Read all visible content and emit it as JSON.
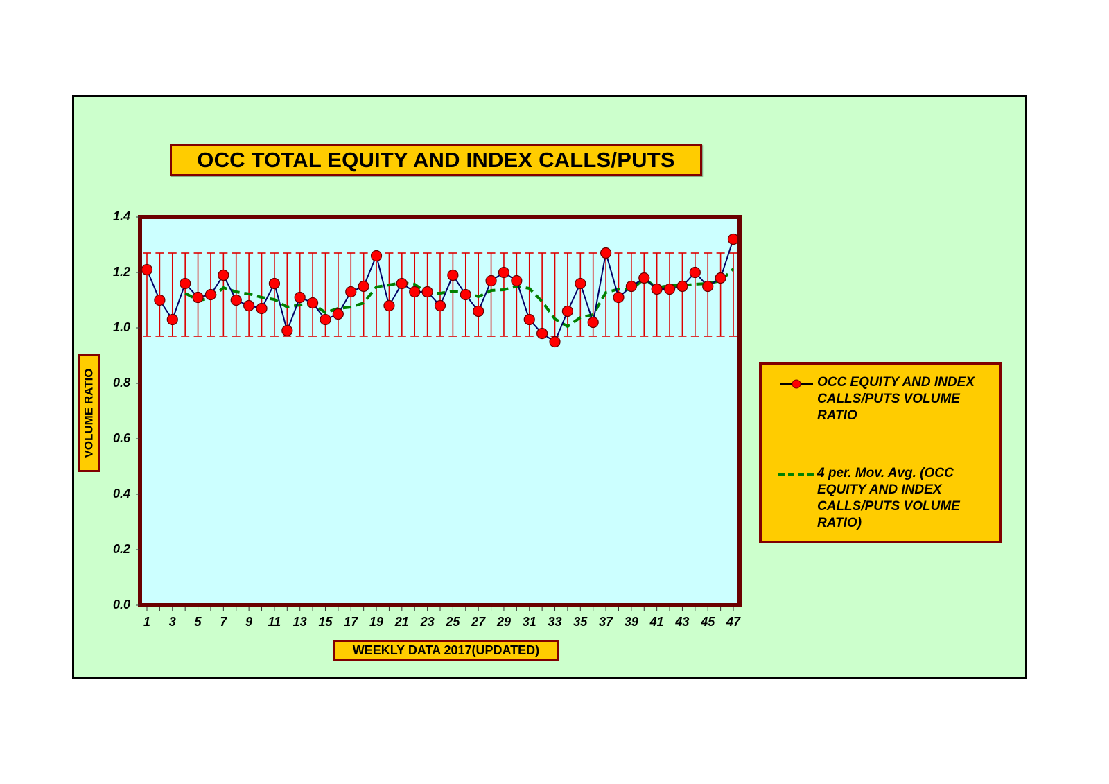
{
  "title": "OCC TOTAL EQUITY AND INDEX CALLS/PUTS",
  "y_axis_label": "VOLUME RATIO",
  "x_axis_label": "WEEKLY DATA 2017(UPDATED)",
  "legend": {
    "series1": "OCC EQUITY AND INDEX CALLS/PUTS VOLUME RATIO",
    "series2": "4 per. Mov. Avg. (OCC EQUITY AND INDEX CALLS/PUTS VOLUME RATIO)"
  },
  "colors": {
    "outer_bg": "#ccffcc",
    "plot_bg": "#ccffff",
    "frame": "#800000",
    "label_box": "#ffcc00",
    "marker": "#ff0000",
    "line": "#000066",
    "moving_avg": "#008000",
    "error_bar": "#dd0000"
  },
  "chart_data": {
    "type": "line",
    "title": "OCC TOTAL EQUITY AND INDEX CALLS/PUTS",
    "xlabel": "WEEKLY DATA 2017(UPDATED)",
    "ylabel": "VOLUME RATIO",
    "ylim": [
      0.0,
      1.4
    ],
    "y_ticks": [
      "0.0",
      "0.2",
      "0.4",
      "0.6",
      "0.8",
      "1.0",
      "1.2",
      "1.4"
    ],
    "x_tick_labels": [
      "1",
      "3",
      "5",
      "7",
      "9",
      "11",
      "13",
      "15",
      "17",
      "19",
      "21",
      "23",
      "25",
      "27",
      "29",
      "31",
      "33",
      "35",
      "37",
      "39",
      "41",
      "43",
      "45",
      "47"
    ],
    "x": [
      1,
      2,
      3,
      4,
      5,
      6,
      7,
      8,
      9,
      10,
      11,
      12,
      13,
      14,
      15,
      16,
      17,
      18,
      19,
      20,
      21,
      22,
      23,
      24,
      25,
      26,
      27,
      28,
      29,
      30,
      31,
      32,
      33,
      34,
      35,
      36,
      37,
      38,
      39,
      40,
      41,
      42,
      43,
      44,
      45,
      46,
      47
    ],
    "grid": false,
    "legend_position": "right",
    "series": [
      {
        "name": "OCC EQUITY AND INDEX CALLS/PUTS VOLUME RATIO",
        "style": "line+marker",
        "values": [
          1.21,
          1.1,
          1.03,
          1.16,
          1.11,
          1.12,
          1.19,
          1.1,
          1.08,
          1.07,
          1.16,
          0.99,
          1.11,
          1.09,
          1.03,
          1.05,
          1.13,
          1.15,
          1.26,
          1.08,
          1.16,
          1.13,
          1.13,
          1.08,
          1.19,
          1.12,
          1.06,
          1.17,
          1.2,
          1.17,
          1.03,
          0.98,
          0.95,
          1.06,
          1.16,
          1.02,
          1.27,
          1.11,
          1.15,
          1.18,
          1.14,
          1.14,
          1.15,
          1.2,
          1.15,
          1.18,
          1.32
        ],
        "error_bars": {
          "low": 0.97,
          "high": 1.27
        }
      },
      {
        "name": "4 per. Mov. Avg. (OCC EQUITY AND INDEX CALLS/PUTS VOLUME RATIO)",
        "style": "dashed",
        "values": [
          null,
          null,
          null,
          1.125,
          1.1,
          1.105,
          1.145,
          1.13,
          1.1225,
          1.11,
          1.1025,
          1.075,
          1.0825,
          1.0875,
          1.055,
          1.07,
          1.075,
          1.09,
          1.1475,
          1.155,
          1.1625,
          1.1575,
          1.125,
          1.125,
          1.1325,
          1.13,
          1.1125,
          1.135,
          1.1375,
          1.15,
          1.1425,
          1.095,
          1.0325,
          1.005,
          1.0375,
          1.0475,
          1.1275,
          1.14,
          1.1375,
          1.1775,
          1.145,
          1.1525,
          1.1525,
          1.1575,
          1.16,
          1.17,
          1.2125
        ]
      }
    ]
  }
}
